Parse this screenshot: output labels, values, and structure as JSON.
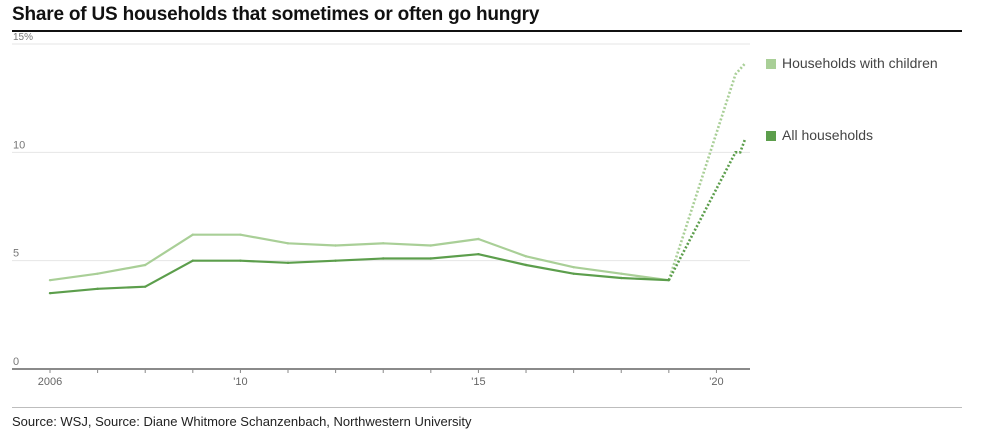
{
  "title": "Share of US households that sometimes or often go hungry",
  "source": "Source: WSJ, Source: Diane Whitmore Schanzenbach, Northwestern University",
  "chart_data": {
    "type": "line",
    "title": "Share of US households that sometimes or often go hungry",
    "xlabel": "",
    "ylabel": "",
    "xlim": [
      2006,
      2020.6
    ],
    "ylim": [
      0,
      15
    ],
    "grid": true,
    "legend": "right",
    "yticks": [
      {
        "value": 0,
        "label": "0"
      },
      {
        "value": 5,
        "label": "5"
      },
      {
        "value": 10,
        "label": "10"
      },
      {
        "value": 15,
        "label": "15%"
      }
    ],
    "xticks": [
      {
        "value": 2006,
        "label": "2006"
      },
      {
        "value": 2010,
        "label": "'10"
      },
      {
        "value": 2015,
        "label": "'15"
      },
      {
        "value": 2020,
        "label": "'20"
      }
    ],
    "series": [
      {
        "name": "Households with children",
        "color": "#a9cf97",
        "x": [
          2006,
          2007,
          2008,
          2009,
          2010,
          2011,
          2012,
          2013,
          2014,
          2015,
          2016,
          2017,
          2018,
          2019
        ],
        "values": [
          4.1,
          4.4,
          4.8,
          6.2,
          6.2,
          5.8,
          5.7,
          5.8,
          5.7,
          6.0,
          5.2,
          4.7,
          4.4,
          4.1
        ],
        "projected_x": [
          2019,
          2020.4,
          2020.6
        ],
        "projected_values": [
          4.1,
          13.6,
          14.1
        ]
      },
      {
        "name": "All households",
        "color": "#5c9e4c",
        "x": [
          2006,
          2007,
          2008,
          2009,
          2010,
          2011,
          2012,
          2013,
          2014,
          2015,
          2016,
          2017,
          2018,
          2019
        ],
        "values": [
          3.5,
          3.7,
          3.8,
          5.0,
          5.0,
          4.9,
          5.0,
          5.1,
          5.1,
          5.3,
          4.8,
          4.4,
          4.2,
          4.1
        ],
        "projected_x": [
          2019,
          2020.4,
          2020.5,
          2020.6
        ],
        "projected_values": [
          4.1,
          10.0,
          10.0,
          10.6
        ]
      }
    ]
  }
}
